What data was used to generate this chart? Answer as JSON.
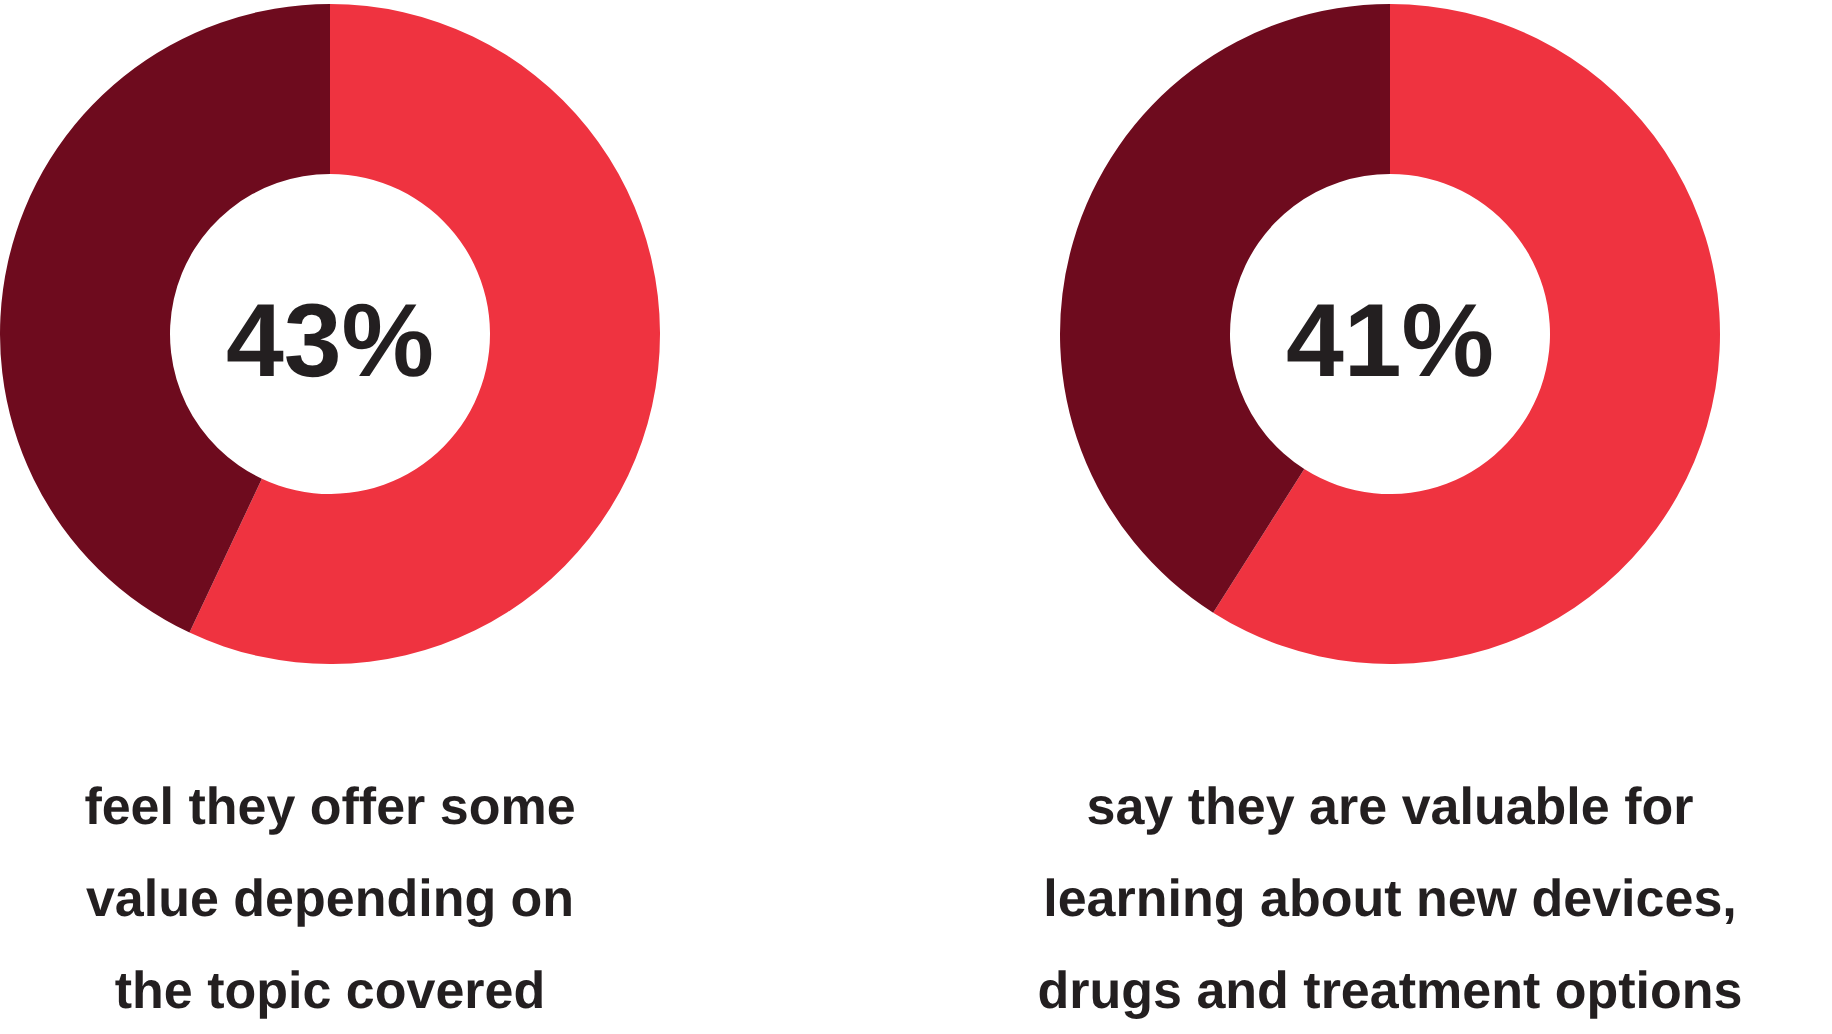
{
  "chart_data": [
    {
      "type": "donut",
      "categories": [
        null,
        null
      ],
      "values": [
        57,
        43
      ],
      "colors": [
        "#ef3340",
        "#6e0b1e"
      ],
      "annotations": [
        "43%",
        "feel they offer some\nvalue depending on\nthe topic covered"
      ]
    },
    {
      "type": "donut",
      "categories": [
        null,
        null
      ],
      "values": [
        59,
        41
      ],
      "colors": [
        "#ef3340",
        "#6e0b1e"
      ],
      "annotations": [
        "41%",
        "say they are valuable for\nlearning about new devices,\ndrugs and treatment options"
      ]
    }
  ]
}
